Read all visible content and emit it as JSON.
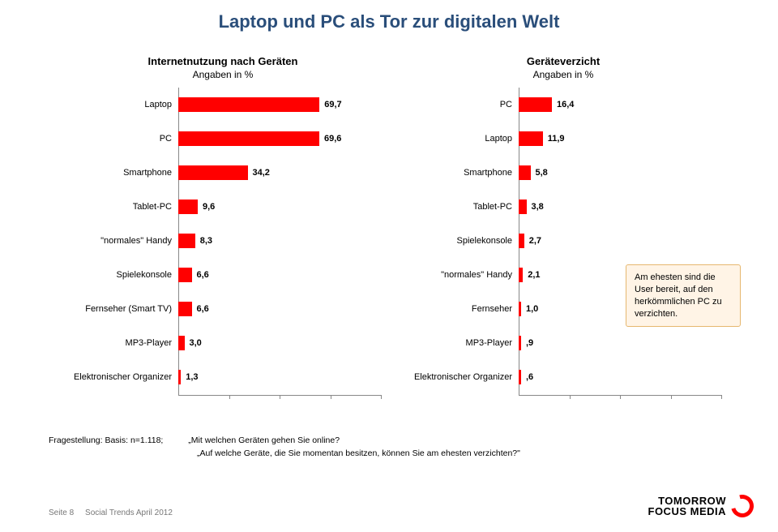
{
  "title": "Laptop und PC als Tor zur digitalen Welt",
  "chart_left": {
    "type": "bar",
    "header": "Internetnutzung nach Geräten",
    "sub": "Angaben in %",
    "max": 100,
    "bar_color": "#ff0000",
    "label_fontsize": 11,
    "value_fontsize": 11,
    "row_gap": 42,
    "items": [
      {
        "label": "Laptop",
        "value": 69.7,
        "display": "69,7"
      },
      {
        "label": "PC",
        "value": 69.6,
        "display": "69,6"
      },
      {
        "label": "Smartphone",
        "value": 34.2,
        "display": "34,2"
      },
      {
        "label": "Tablet-PC",
        "value": 9.6,
        "display": "9,6"
      },
      {
        "label": "\"normales\" Handy",
        "value": 8.3,
        "display": "8,3"
      },
      {
        "label": "Spielekonsole",
        "value": 6.6,
        "display": "6,6"
      },
      {
        "label": "Fernseher (Smart TV)",
        "value": 6.6,
        "display": "6,6"
      },
      {
        "label": "MP3-Player",
        "value": 3.0,
        "display": "3,0"
      },
      {
        "label": "Elektronischer Organizer",
        "value": 1.3,
        "display": "1,3"
      }
    ]
  },
  "chart_right": {
    "type": "bar",
    "header": "Geräteverzicht",
    "sub": "Angaben in %",
    "max": 100,
    "bar_color": "#ff0000",
    "label_fontsize": 11,
    "value_fontsize": 11,
    "row_gap": 42,
    "items": [
      {
        "label": "PC",
        "value": 16.4,
        "display": "16,4"
      },
      {
        "label": "Laptop",
        "value": 11.9,
        "display": "11,9"
      },
      {
        "label": "Smartphone",
        "value": 5.8,
        "display": "5,8"
      },
      {
        "label": "Tablet-PC",
        "value": 3.8,
        "display": "3,8"
      },
      {
        "label": "Spielekonsole",
        "value": 2.7,
        "display": "2,7"
      },
      {
        "label": "\"normales\" Handy",
        "value": 2.1,
        "display": "2,1"
      },
      {
        "label": "Fernseher",
        "value": 1.0,
        "display": "1,0"
      },
      {
        "label": "MP3-Player",
        "value": 0.9,
        "display": ",9"
      },
      {
        "label": "Elektronischer Organizer",
        "value": 0.6,
        "display": ",6"
      }
    ]
  },
  "callout": "Am ehesten sind die User bereit, auf den herkömmlichen PC zu verzichten.",
  "foot_basis": "Fragestellung: Basis: n=1.118;",
  "foot_q1": "„Mit welchen Geräten gehen Sie online?",
  "foot_q2": "„Auf welche Geräte, die Sie momentan besitzen, können Sie am ehesten verzichten?\"",
  "footer_page": "Seite 8",
  "footer_src": "Social Trends April 2012",
  "logo_l1": "TOMORROW",
  "logo_l2": "FOCUS MEDIA",
  "colors": {
    "title": "#2a4e7a",
    "bar": "#ff0000",
    "axis": "#888888",
    "background": "#ffffff",
    "callout_fill": "#fff4e6",
    "callout_border": "#e6b76f"
  }
}
